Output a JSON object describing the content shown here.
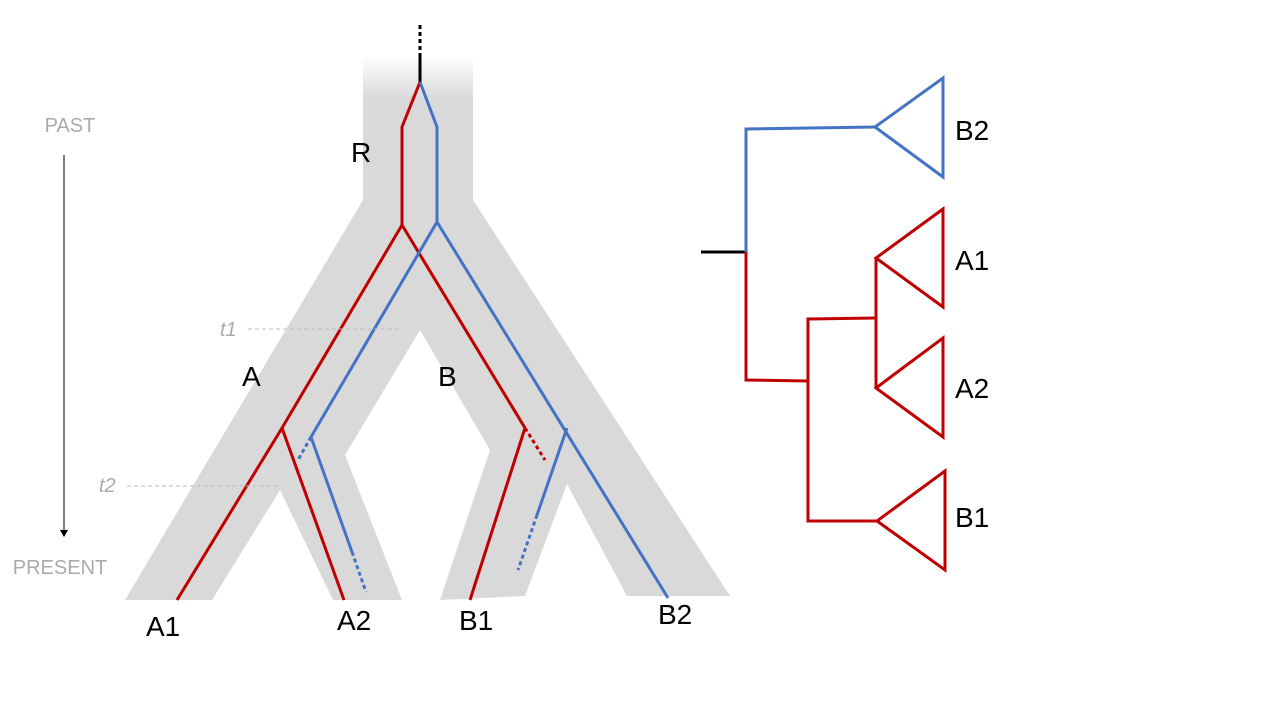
{
  "colors": {
    "population": "#d9d9d9",
    "gene_red": "#c00000",
    "gene_blue": "#4472c4",
    "root_stem": "#000000",
    "time_label": "#aaaaaa"
  },
  "time_axis": {
    "past_label": "PAST",
    "present_label": "PRESENT"
  },
  "time_markers": {
    "t1": "t1",
    "t2": "t2"
  },
  "population_labels": {
    "root": "R",
    "a": "A",
    "b": "B"
  },
  "tip_labels": {
    "a1": "A1",
    "a2": "A2",
    "b1": "B1",
    "b2": "B2"
  },
  "gene_tree_labels": {
    "b2": "B2",
    "a1": "A1",
    "a2": "A2",
    "b1": "B1"
  }
}
